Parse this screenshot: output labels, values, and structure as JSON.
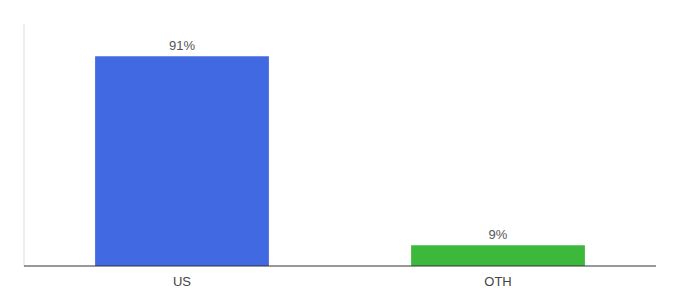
{
  "chart_data": {
    "type": "bar",
    "categories": [
      "US",
      "OTH"
    ],
    "values": [
      91,
      9
    ],
    "value_labels": [
      "91%",
      "9%"
    ],
    "colors": [
      "#4169e1",
      "#3cb83c"
    ],
    "ylim": [
      0,
      105
    ],
    "data_labels": true,
    "tick_labels": "x",
    "grid": false
  }
}
